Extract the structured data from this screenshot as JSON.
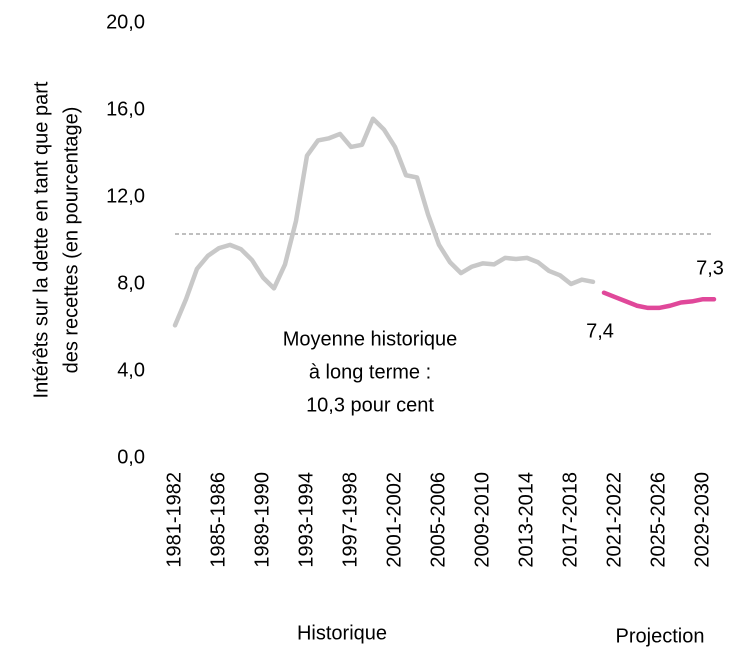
{
  "chart_data": {
    "type": "line",
    "ylabel": [
      "Intérêts sur la dette en tant que part",
      "des recettes (en pourcentage)"
    ],
    "categories": [
      "1981-1982",
      null,
      null,
      null,
      "1985-1986",
      null,
      null,
      null,
      "1989-1990",
      null,
      null,
      null,
      "1993-1994",
      null,
      null,
      null,
      "1997-1998",
      null,
      null,
      null,
      "2001-2002",
      null,
      null,
      null,
      "2005-2006",
      null,
      null,
      null,
      "2009-2010",
      null,
      null,
      null,
      "2013-2014",
      null,
      null,
      null,
      "2017-2018",
      null,
      null,
      null,
      "2021-2022",
      null,
      null,
      null,
      "2025-2026",
      null,
      null,
      null,
      "2029-2030",
      null
    ],
    "series": [
      {
        "name": "Historique",
        "color": "#c8c8c8",
        "values": [
          6.1,
          7.3,
          8.7,
          9.3,
          9.65,
          9.8,
          9.6,
          9.1,
          8.3,
          7.8,
          8.9,
          10.9,
          13.9,
          14.6,
          14.7,
          14.9,
          14.3,
          14.4,
          15.6,
          15.1,
          14.3,
          13.0,
          12.9,
          11.2,
          9.8,
          9.0,
          8.5,
          8.8,
          8.95,
          8.9,
          9.2,
          9.15,
          9.2,
          9.0,
          8.6,
          8.4,
          8.0,
          8.2,
          8.1,
          null,
          null,
          null,
          null,
          null,
          null,
          null,
          null,
          null,
          null,
          null
        ]
      },
      {
        "name": "Projection",
        "color": "#e0489a",
        "values": [
          null,
          null,
          null,
          null,
          null,
          null,
          null,
          null,
          null,
          null,
          null,
          null,
          null,
          null,
          null,
          null,
          null,
          null,
          null,
          null,
          null,
          null,
          null,
          null,
          null,
          null,
          null,
          null,
          null,
          null,
          null,
          null,
          null,
          null,
          null,
          null,
          null,
          null,
          null,
          7.6,
          7.4,
          7.2,
          7.0,
          6.9,
          6.9,
          7.0,
          7.15,
          7.2,
          7.3,
          7.3
        ],
        "value_labels": [
          null,
          null,
          null,
          null,
          null,
          null,
          null,
          null,
          null,
          null,
          null,
          null,
          null,
          null,
          null,
          null,
          null,
          null,
          null,
          null,
          null,
          null,
          null,
          null,
          null,
          null,
          null,
          null,
          null,
          null,
          null,
          null,
          null,
          null,
          null,
          null,
          null,
          null,
          null,
          null,
          "7,4",
          null,
          null,
          null,
          null,
          null,
          null,
          null,
          null,
          "7,3"
        ]
      }
    ],
    "reference_line": {
      "value": 10.3,
      "color": "#999999",
      "label": [
        "Moyenne historique",
        "à long terme :",
        "10,3 pour cent"
      ]
    },
    "ylim": [
      0,
      20
    ],
    "yticks": [
      {
        "value": 0,
        "label": "0,0"
      },
      {
        "value": 4,
        "label": "4,0"
      },
      {
        "value": 8,
        "label": "8,0"
      },
      {
        "value": 12,
        "label": "12,0"
      },
      {
        "value": 16,
        "label": "16,0"
      },
      {
        "value": 20,
        "label": "20,0"
      }
    ],
    "grid": false
  }
}
